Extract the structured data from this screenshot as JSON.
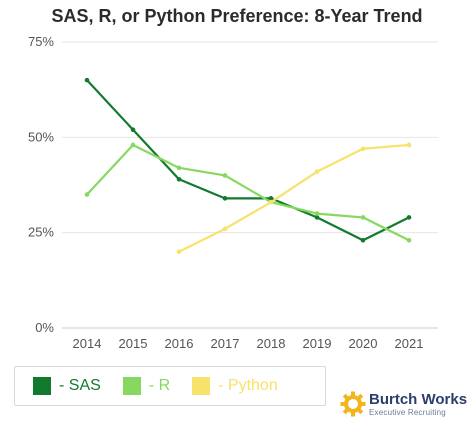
{
  "chart_data": {
    "type": "line",
    "title": "SAS, R, or Python Preference: 8-Year Trend",
    "x": [
      "2014",
      "2015",
      "2016",
      "2017",
      "2018",
      "2019",
      "2020",
      "2021"
    ],
    "y_ticks": [
      "0%",
      "25%",
      "50%",
      "75%"
    ],
    "ylim": [
      0,
      75
    ],
    "grid": true,
    "legend_position": "bottom-left",
    "series": [
      {
        "name": "- SAS",
        "color": "#127a2e",
        "values": [
          65,
          52,
          39,
          34,
          34,
          29,
          23,
          29
        ]
      },
      {
        "name": "- R",
        "color": "#86d95e",
        "values": [
          35,
          48,
          42,
          40,
          33,
          30,
          29,
          23
        ]
      },
      {
        "name": "- Python",
        "color": "#f7e26b",
        "values": [
          null,
          null,
          20,
          26,
          33,
          41,
          47,
          48
        ]
      }
    ]
  },
  "branding": {
    "logo_name": "Burtch Works",
    "logo_tagline": "Executive Recruiting",
    "logo_icon": "gear-icon"
  }
}
